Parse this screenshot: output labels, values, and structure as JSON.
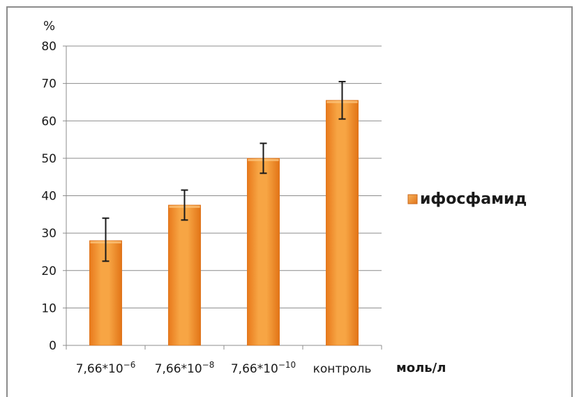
{
  "chart_data": {
    "type": "bar",
    "y_unit_label": "%",
    "x_unit_label": "моль/л",
    "ylim": [
      0,
      80
    ],
    "y_ticks": [
      "0",
      "10",
      "20",
      "30",
      "40",
      "50",
      "60",
      "70",
      "80"
    ],
    "grid": true,
    "legend_position": "right",
    "categories": [
      {
        "base": "7,66*10",
        "exp": "−6"
      },
      {
        "base": "7,66*10",
        "exp": "−8"
      },
      {
        "base": "7,66*10",
        "exp": "−10"
      },
      {
        "base": "контроль",
        "exp": ""
      }
    ],
    "series": [
      {
        "name": "ифосфамид",
        "values": [
          28,
          37.5,
          50,
          65.5
        ],
        "error_low": [
          22.5,
          33.5,
          46,
          60.5
        ],
        "error_high": [
          34,
          41.5,
          54,
          70.5
        ],
        "color": "#f29a2e"
      }
    ]
  }
}
